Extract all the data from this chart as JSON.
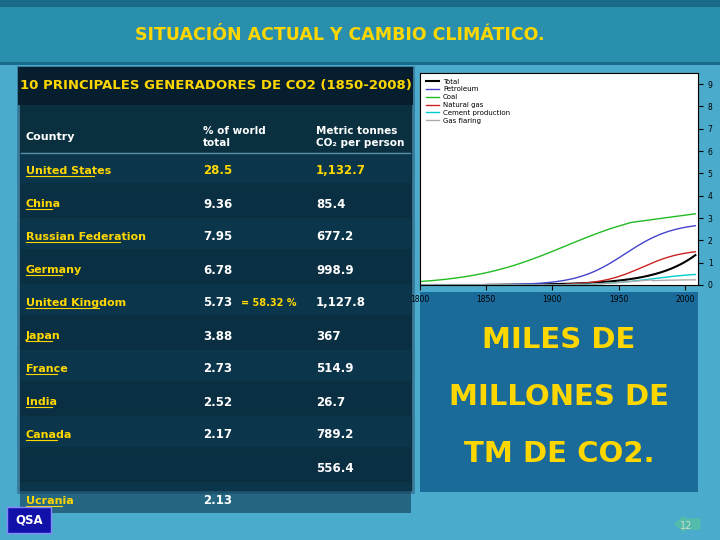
{
  "title": "SITUACIÓN ACTUAL Y CAMBIO CLIMÁTICO.",
  "title_color": "#FFD700",
  "background_color": "#4AABCC",
  "table_title": "10 PRINCIPALES GENERADORES DE CO2 (1850-2008)",
  "table_bg": "#0A3040",
  "table_border": "#4488AA",
  "col_headers": [
    "Country",
    "% of world\ntotal",
    "Metric tonnes\nCO₂ per person"
  ],
  "rows": [
    [
      "United States",
      "28.5",
      "1,132.7",
      true
    ],
    [
      "China",
      "9.36",
      "85.4",
      false
    ],
    [
      "Russian Federation",
      "7.95",
      "677.2",
      false
    ],
    [
      "Germany",
      "6.78",
      "998.9",
      false
    ],
    [
      "United Kingdom",
      "5.73",
      "1,127.8",
      false
    ],
    [
      "Japan",
      "3.88",
      "367",
      false
    ],
    [
      "France",
      "2.73",
      "514.9",
      false
    ],
    [
      "India",
      "2.52",
      "26.7",
      false
    ],
    [
      "Canada",
      "2.17",
      "789.2",
      false
    ],
    [
      "",
      "",
      "556.4",
      false
    ],
    [
      "Ucrania",
      "2.13",
      "",
      false
    ]
  ],
  "note": "= 58.32 %",
  "note_row": 4,
  "miles_text": [
    "MILES DE",
    "MILLONES DE",
    "TM DE CO2."
  ],
  "miles_color": "#FFD700",
  "qsa_text": "QSA",
  "page_num": "12"
}
